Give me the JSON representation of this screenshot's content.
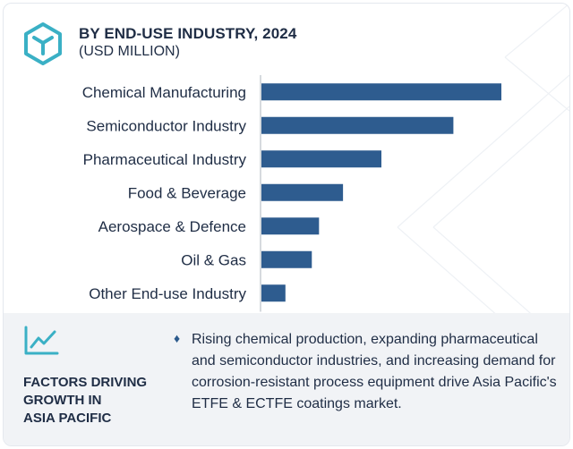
{
  "header": {
    "title": "BY END-USE INDUSTRY, 2024",
    "subtitle": "(USD MILLION)",
    "icon": "hexagon-cube-icon",
    "accent_color": "#3ab0c5"
  },
  "chart_data": {
    "type": "bar",
    "orientation": "horizontal",
    "title": "BY END-USE INDUSTRY, 2024",
    "subtitle": "(USD MILLION)",
    "categories": [
      "Chemical Manufacturing",
      "Semiconductor Industry",
      "Pharmaceutical Industry",
      "Food & Beverage",
      "Aerospace & Defence",
      "Oil & Gas",
      "Other End-use Industry"
    ],
    "values": [
      100,
      80,
      50,
      34,
      24,
      21,
      10
    ],
    "value_note": "relative bar lengths, no numeric axis printed",
    "xlim": [
      0,
      100
    ],
    "bar_color": "#2e5c8f",
    "axis_color": "#c8cdd4",
    "grid": false,
    "legend": "none"
  },
  "factors": {
    "icon": "trend-line-icon",
    "title": "FACTORS DRIVING\nGROWTH IN\nASIA PACIFIC",
    "bullet": "♦",
    "text": "Rising chemical production, expanding pharmaceutical and semiconductor industries, and increasing demand for corrosion-resistant process equipment drive Asia Pacific's ETFE & ECTFE coatings market."
  }
}
